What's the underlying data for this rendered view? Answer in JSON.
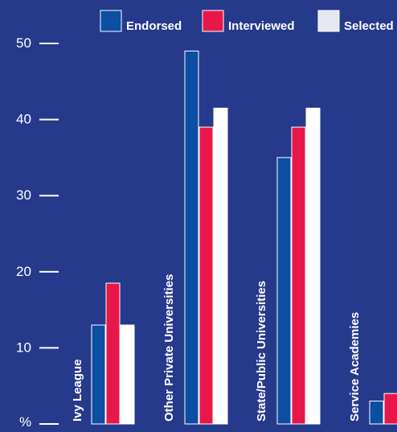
{
  "colors": {
    "background": "#263a8c",
    "endorsed": "#0b4ea2",
    "interviewed": "#e8174a",
    "selected": "#ffffff",
    "text": "#ffffff"
  },
  "chart_data": {
    "type": "bar",
    "title": "",
    "xlabel": "",
    "ylabel": "%",
    "ylim": [
      0,
      50
    ],
    "yticks": [
      10,
      20,
      30,
      40,
      50
    ],
    "grid": false,
    "legend_position": "top",
    "categories": [
      "Ivy League",
      "Other Private Universities",
      "State/Public Universities",
      "Service Academies"
    ],
    "visible_category_labels": [
      "Ivy League",
      "Other Private Universities",
      "State/Public Universities",
      "Service Academies"
    ],
    "series": [
      {
        "name": "Endorsed",
        "values": [
          13,
          49,
          35,
          3
        ]
      },
      {
        "name": "Interviewed",
        "values": [
          18.5,
          39,
          39,
          4
        ]
      },
      {
        "name": "Selected",
        "values": [
          13,
          41.5,
          41.5,
          null
        ]
      }
    ]
  }
}
